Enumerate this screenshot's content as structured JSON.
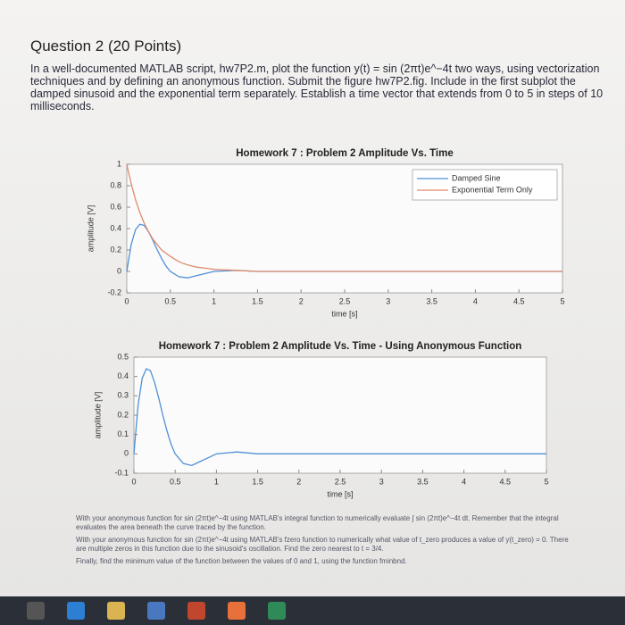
{
  "document": {
    "title": "Question 2 (20 Points)",
    "text": "In a well-documented MATLAB script, hw7P2.m, plot the function y(t) = sin (2πt)e^−4t two ways, using vectorization techniques and by defining an anonymous function. Submit the figure hw7P2.fig. Include in the first subplot the damped sinusoid and the exponential term separately. Establish a time vector that extends from 0 to 5 in steps of 10 milliseconds.",
    "notes": [
      "With your anonymous function for sin (2πt)e^−4t using MATLAB's integral function to numerically evaluate ∫ sin (2πt)e^−4t dt. Remember that the integral evaluates the area beneath the curve traced by the function.",
      "With your anonymous function for sin (2πt)e^−4t using MATLAB's fzero function to numerically what value of t_zero produces a value of y(t_zero) = 0. There are multiple zeros in this function due to the sinusoid's oscillation. Find the zero nearest to t = 3/4.",
      "Finally, find the minimum value of the function between the values of 0 and 1, using the function fminbnd."
    ]
  },
  "chart_data": [
    {
      "type": "line",
      "title": "Homework 7 : Problem 2 Amplitude Vs. Time",
      "xlabel": "time [s]",
      "ylabel": "amplitude [V]",
      "x": [
        0,
        0.05,
        0.1,
        0.15,
        0.2,
        0.25,
        0.3,
        0.35,
        0.4,
        0.45,
        0.5,
        0.6,
        0.7,
        0.8,
        0.9,
        1,
        1.25,
        1.5,
        2,
        3,
        4,
        5
      ],
      "series": [
        {
          "name": "Damped Sine",
          "color": "#4f8fd6",
          "values": [
            0,
            0.25,
            0.39,
            0.44,
            0.43,
            0.37,
            0.29,
            0.2,
            0.12,
            0.05,
            0,
            -0.05,
            -0.06,
            -0.04,
            -0.02,
            0,
            0.01,
            0,
            0,
            0,
            0,
            0
          ]
        },
        {
          "name": "Exponential Term Only",
          "color": "#e08a6a",
          "values": [
            1,
            0.82,
            0.67,
            0.55,
            0.45,
            0.37,
            0.3,
            0.25,
            0.2,
            0.17,
            0.14,
            0.09,
            0.06,
            0.04,
            0.03,
            0.02,
            0.01,
            0,
            0,
            0,
            0,
            0
          ]
        }
      ],
      "xlim": [
        0,
        5
      ],
      "xticks": [
        0,
        0.5,
        1,
        1.5,
        2,
        2.5,
        3,
        3.5,
        4,
        4.5,
        5
      ],
      "ylim": [
        -0.2,
        1
      ],
      "yticks": [
        -0.2,
        0,
        0.2,
        0.4,
        0.6,
        0.8,
        1
      ],
      "legend": "upper right"
    },
    {
      "type": "line",
      "title": "Homework 7 : Problem 2 Amplitude Vs. Time - Using Anonymous Function",
      "xlabel": "time [s]",
      "ylabel": "amplitude [V]",
      "x": [
        0,
        0.05,
        0.1,
        0.15,
        0.2,
        0.25,
        0.3,
        0.35,
        0.4,
        0.45,
        0.5,
        0.6,
        0.7,
        0.8,
        0.9,
        1,
        1.25,
        1.5,
        2,
        3,
        4,
        5
      ],
      "series": [
        {
          "color": "#4f8fd6",
          "values": [
            0,
            0.25,
            0.39,
            0.44,
            0.43,
            0.37,
            0.29,
            0.2,
            0.12,
            0.05,
            0,
            -0.05,
            -0.06,
            -0.04,
            -0.02,
            0,
            0.01,
            0,
            0,
            0,
            0,
            0
          ]
        }
      ],
      "xlim": [
        0,
        5
      ],
      "xticks": [
        0,
        0.5,
        1,
        1.5,
        2,
        2.5,
        3,
        3.5,
        4,
        4.5,
        5
      ],
      "ylim": [
        -0.1,
        0.5
      ],
      "yticks": [
        -0.1,
        0,
        0.1,
        0.2,
        0.3,
        0.4,
        0.5
      ]
    }
  ]
}
